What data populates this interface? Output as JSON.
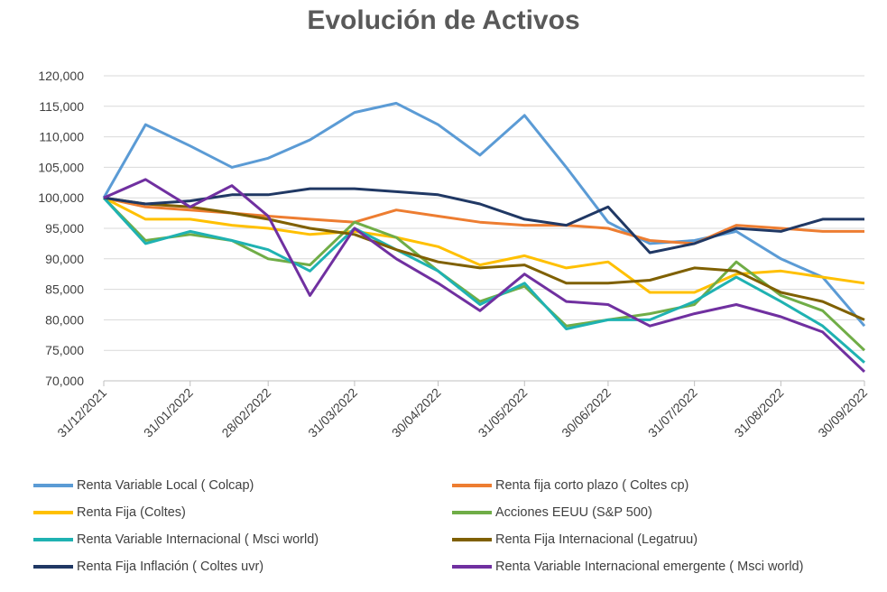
{
  "chart_data": {
    "type": "line",
    "title": "Evolución de Activos",
    "ylim": [
      70000,
      120000
    ],
    "yticks": [
      "70,000",
      "75,000",
      "80,000",
      "85,000",
      "90,000",
      "95,000",
      "100,000",
      "105,000",
      "110,000",
      "115,000",
      "120,000"
    ],
    "x": [
      "31/12/2021",
      "15/01/2022",
      "31/01/2022",
      "15/02/2022",
      "28/02/2022",
      "15/03/2022",
      "31/03/2022",
      "15/04/2022",
      "30/04/2022",
      "15/05/2022",
      "31/05/2022",
      "15/06/2022",
      "30/06/2022",
      "15/07/2022",
      "31/07/2022",
      "15/08/2022",
      "31/08/2022",
      "15/09/2022",
      "30/09/2022"
    ],
    "xticks": [
      "31/12/2021",
      "31/01/2022",
      "28/02/2022",
      "31/03/2022",
      "30/04/2022",
      "31/05/2022",
      "30/06/2022",
      "31/07/2022",
      "31/08/2022",
      "30/09/2022"
    ],
    "series": [
      {
        "name": "Renta Variable Local ( Colcap)",
        "color": "#5b9bd5",
        "values": [
          100000,
          112000,
          108500,
          105000,
          106500,
          109500,
          114000,
          115500,
          112000,
          107000,
          113500,
          105000,
          96000,
          92500,
          93000,
          94500,
          90000,
          87000,
          79000
        ]
      },
      {
        "name": "Renta fija corto plazo ( Coltes cp)",
        "color": "#ed7d31",
        "values": [
          100000,
          98500,
          98000,
          97500,
          97000,
          96500,
          96000,
          98000,
          97000,
          96000,
          95500,
          95500,
          95000,
          93000,
          92500,
          95500,
          95000,
          94500,
          94500
        ]
      },
      {
        "name": "Renta Fija (Coltes)",
        "color": "#ffc000",
        "values": [
          100000,
          96500,
          96500,
          95500,
          95000,
          94000,
          94500,
          93500,
          92000,
          89000,
          90500,
          88500,
          89500,
          84500,
          84500,
          87500,
          88000,
          87000,
          86000
        ]
      },
      {
        "name": "Acciones EEUU (S&P 500)",
        "color": "#70ad47",
        "values": [
          100000,
          93000,
          94000,
          93000,
          90000,
          89000,
          96000,
          93500,
          88000,
          83000,
          85500,
          79000,
          80000,
          81000,
          82500,
          89500,
          84000,
          81500,
          75000
        ]
      },
      {
        "name": "Renta Variable Internacional ( Msci world)",
        "color": "#1fb2b2",
        "values": [
          100000,
          92500,
          94500,
          93000,
          91500,
          88000,
          95000,
          91500,
          88000,
          82500,
          86000,
          78500,
          80000,
          80000,
          83000,
          87000,
          83000,
          79000,
          73000
        ]
      },
      {
        "name": "Renta Fija Internacional (Legatruu)",
        "color": "#7f6000",
        "values": [
          100000,
          99000,
          98500,
          97500,
          96500,
          95000,
          94000,
          91500,
          89500,
          88500,
          89000,
          86000,
          86000,
          86500,
          88500,
          88000,
          84500,
          83000,
          80000
        ]
      },
      {
        "name": "Renta Fija Inflación ( Coltes uvr)",
        "color": "#203864",
        "values": [
          100000,
          99000,
          99500,
          100500,
          100500,
          101500,
          101500,
          101000,
          100500,
          99000,
          96500,
          95500,
          98500,
          91000,
          92500,
          95000,
          94500,
          96500,
          96500
        ]
      },
      {
        "name": "Renta Variable Internacional emergente ( Msci world)",
        "color": "#7030a0",
        "values": [
          100000,
          103000,
          98500,
          102000,
          97000,
          84000,
          95000,
          90000,
          86000,
          81500,
          87500,
          83000,
          82500,
          79000,
          81000,
          82500,
          80500,
          78000,
          71500
        ]
      }
    ]
  }
}
